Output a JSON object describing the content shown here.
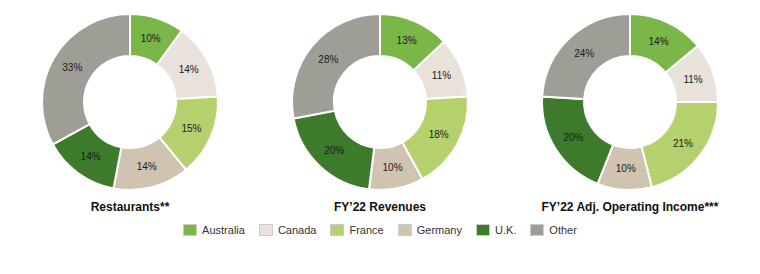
{
  "chart_data": [
    {
      "type": "pie",
      "title": "Restaurants**",
      "categories": [
        "Australia",
        "Canada",
        "France",
        "Germany",
        "U.K.",
        "Other"
      ],
      "values": [
        10,
        14,
        15,
        14,
        14,
        33
      ],
      "value_labels": [
        "10%",
        "14%",
        "15%",
        "14%",
        "14%",
        "33%"
      ],
      "colors": [
        "#7ab648",
        "#e8e2da",
        "#b5d16e",
        "#d0c3b0",
        "#3d7a2b",
        "#9e9e96"
      ],
      "data_labels": true,
      "legend": "bottom"
    },
    {
      "type": "pie",
      "title": "FY’22 Revenues",
      "categories": [
        "Australia",
        "Canada",
        "France",
        "Germany",
        "U.K.",
        "Other"
      ],
      "values": [
        13,
        11,
        18,
        10,
        20,
        28
      ],
      "value_labels": [
        "13%",
        "11%",
        "18%",
        "10%",
        "20%",
        "28%"
      ],
      "colors": [
        "#7ab648",
        "#e8e2da",
        "#b5d16e",
        "#d0c3b0",
        "#3d7a2b",
        "#9e9e96"
      ],
      "data_labels": true
    },
    {
      "type": "pie",
      "title": "FY’22 Adj. Operating Income***",
      "categories": [
        "Australia",
        "Canada",
        "France",
        "Germany",
        "U.K.",
        "Other"
      ],
      "values": [
        14,
        11,
        21,
        10,
        20,
        24
      ],
      "value_labels": [
        "14%",
        "11%",
        "21%",
        "10%",
        "20%",
        "24%"
      ],
      "colors": [
        "#7ab648",
        "#e8e2da",
        "#b5d16e",
        "#d0c3b0",
        "#3d7a2b",
        "#9e9e96"
      ],
      "data_labels": true
    }
  ]
}
